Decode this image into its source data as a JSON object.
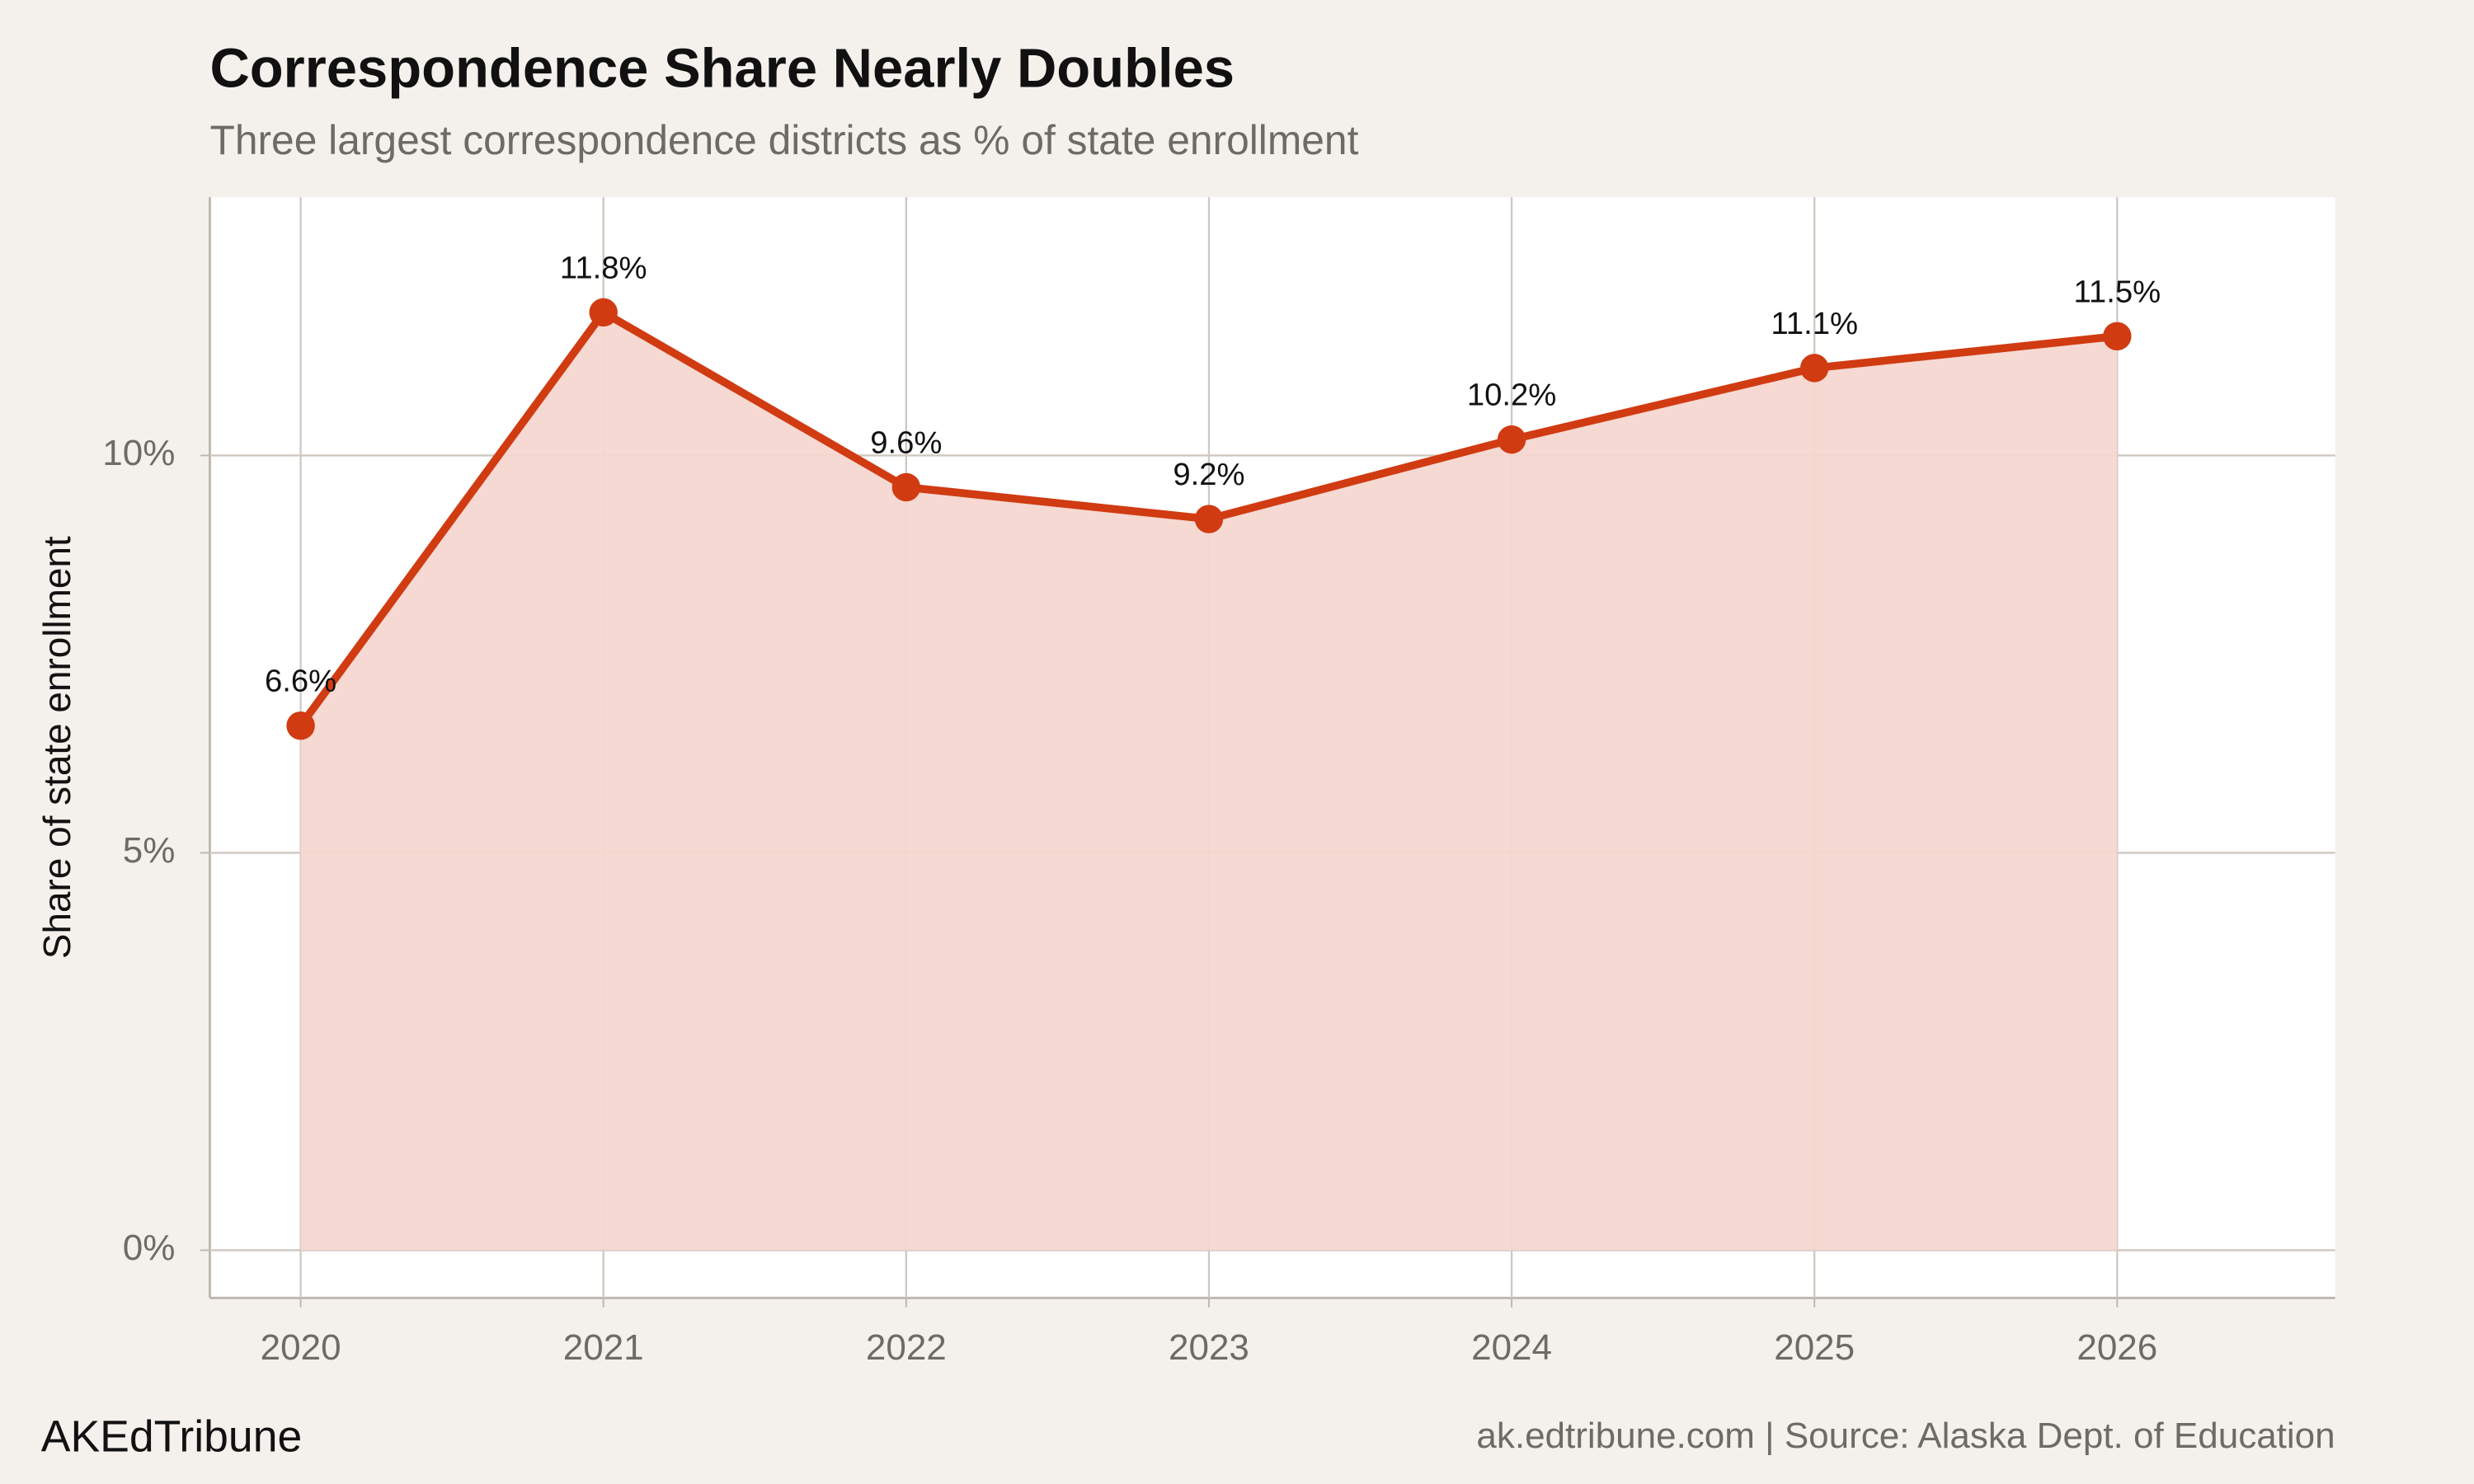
{
  "chart_data": {
    "type": "area-line",
    "title": "Correspondence Share Nearly Doubles",
    "subtitle": "Three largest correspondence districts as % of state enrollment",
    "y_label": "Share of state enrollment",
    "x": [
      2020,
      2021,
      2022,
      2023,
      2024,
      2025,
      2026
    ],
    "series": [
      {
        "name": "Share of state enrollment",
        "color": "#d13b12",
        "fill_color": "#f5d7d0",
        "values": [
          6.6,
          11.8,
          9.6,
          9.2,
          10.2,
          11.1,
          11.5
        ],
        "value_labels": [
          "6.6%",
          "11.8%",
          "9.6%",
          "9.2%",
          "10.2%",
          "11.1%",
          "11.5%"
        ]
      }
    ],
    "xlim": [
      2019.7,
      2026.72
    ],
    "xticks": [
      2020,
      2021,
      2022,
      2023,
      2024,
      2025,
      2026
    ],
    "ylim": [
      -0.6,
      13.25
    ],
    "yticks": [
      {
        "value": 0,
        "label": "0%"
      },
      {
        "value": 5,
        "label": "5%"
      },
      {
        "value": 10,
        "label": "10%"
      }
    ],
    "grid": true,
    "brand": "AKEdTribune",
    "source": "ak.edtribune.com | Source: Alaska Dept. of Education"
  }
}
